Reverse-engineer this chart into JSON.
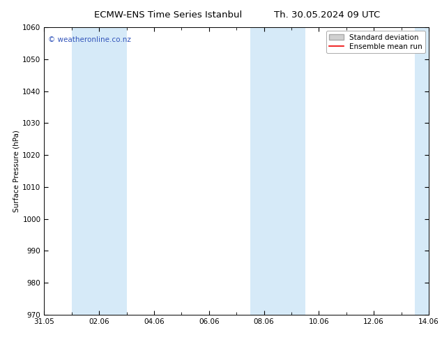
{
  "title_left": "ECMW-ENS Time Series Istanbul",
  "title_right": "Th. 30.05.2024 09 UTC",
  "ylabel": "Surface Pressure (hPa)",
  "ylim": [
    970,
    1060
  ],
  "yticks": [
    970,
    980,
    990,
    1000,
    1010,
    1020,
    1030,
    1040,
    1050,
    1060
  ],
  "x_start_days": 0,
  "x_end_days": 14,
  "xtick_labels": [
    "31.05",
    "02.06",
    "04.06",
    "06.06",
    "08.06",
    "10.06",
    "12.06",
    "14.06"
  ],
  "xtick_positions": [
    0,
    2,
    4,
    6,
    8,
    10,
    12,
    14
  ],
  "shaded_regions": [
    {
      "x_start": 1.0,
      "x_end": 3.0,
      "color": "#d6eaf8"
    },
    {
      "x_start": 7.5,
      "x_end": 9.5,
      "color": "#d6eaf8"
    },
    {
      "x_start": 13.5,
      "x_end": 14.0,
      "color": "#d6eaf8"
    }
  ],
  "watermark_text": "© weatheronline.co.nz",
  "watermark_color": "#3355bb",
  "watermark_fontsize": 7.5,
  "bg_color": "#ffffff",
  "legend_std_color": "#d0d0d0",
  "legend_std_edge": "#aaaaaa",
  "legend_mean_color": "#ee0000",
  "title_fontsize": 9.5,
  "axis_fontsize": 7.5,
  "ylabel_fontsize": 7.5,
  "legend_fontsize": 7.5
}
